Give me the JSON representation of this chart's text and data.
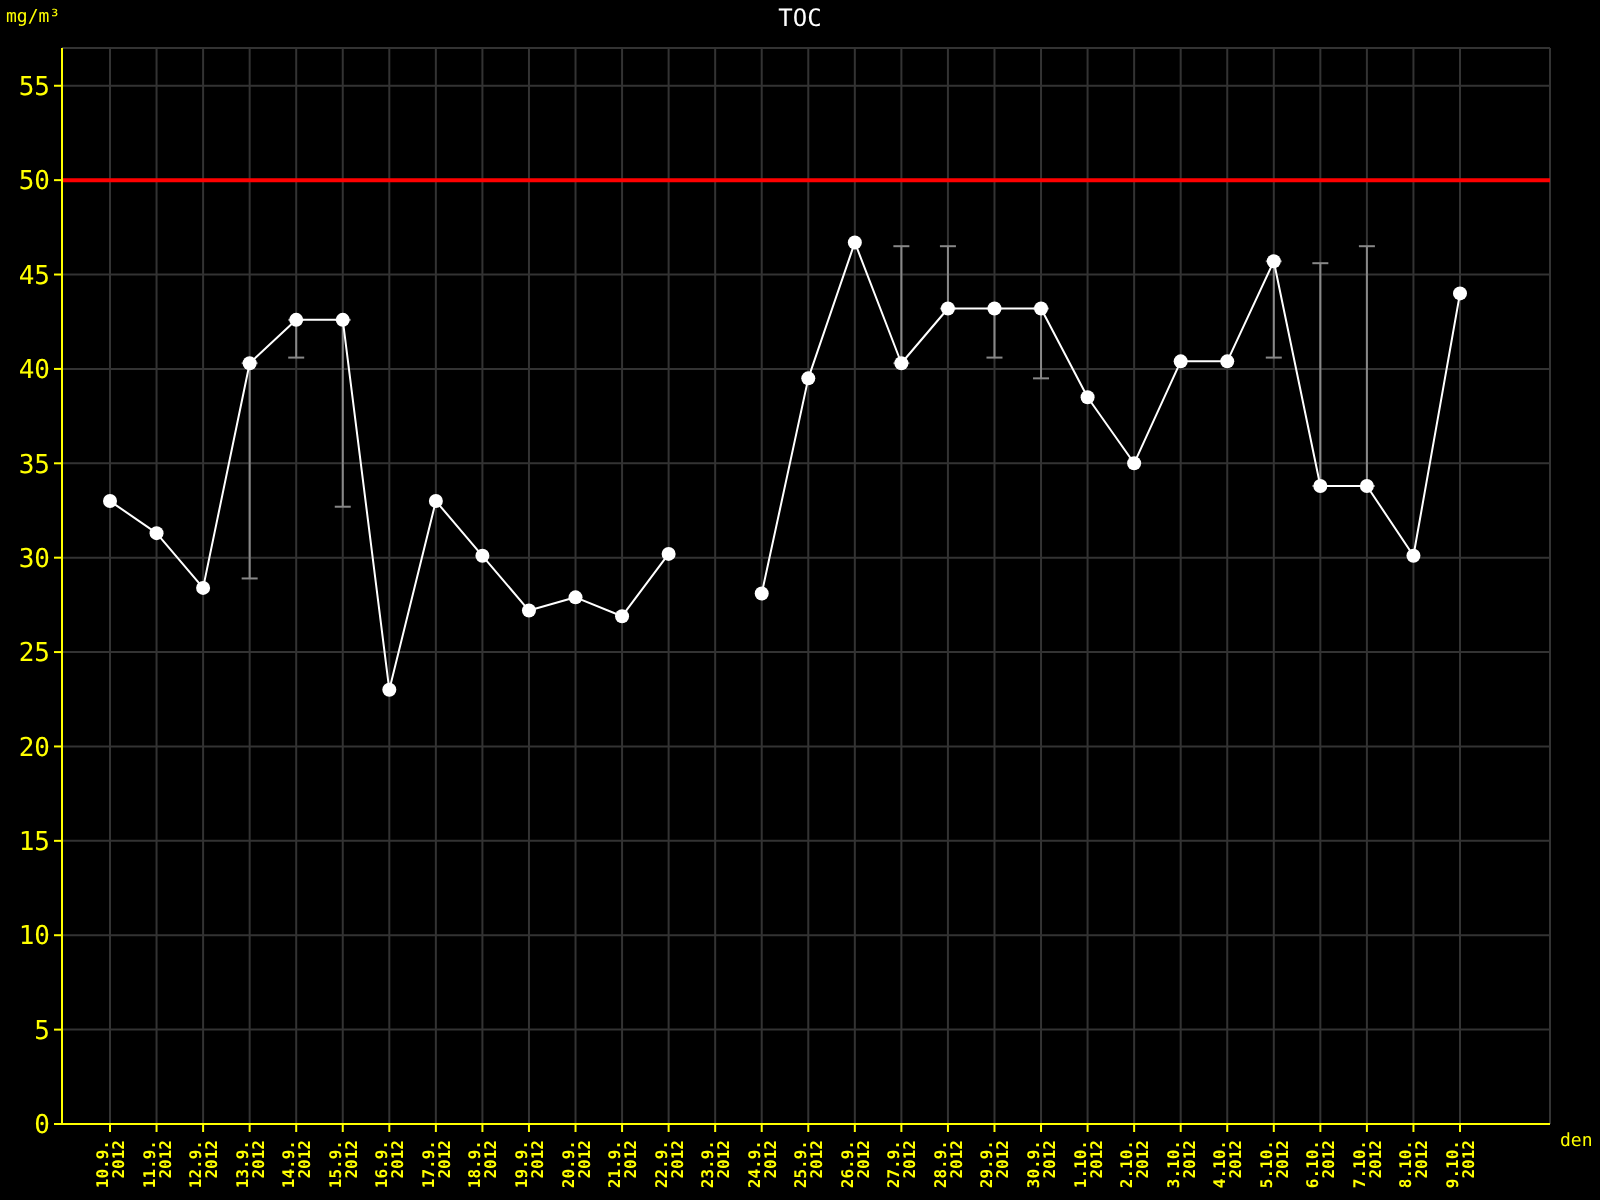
{
  "chart_data": {
    "type": "line",
    "title": "TOC",
    "xlabel": "den",
    "ylabel": "mg/m³",
    "categories": [
      "10.9. 2012",
      "11.9. 2012",
      "12.9. 2012",
      "13.9. 2012",
      "14.9. 2012",
      "15.9. 2012",
      "16.9. 2012",
      "17.9. 2012",
      "18.9. 2012",
      "19.9. 2012",
      "20.9. 2012",
      "21.9. 2012",
      "22.9. 2012",
      "23.9. 2012",
      "24.9. 2012",
      "25.9. 2012",
      "26.9. 2012",
      "27.9. 2012",
      "28.9. 2012",
      "29.9. 2012",
      "30.9. 2012",
      "1.10. 2012",
      "2.10. 2012",
      "3.10. 2012",
      "4.10. 2012",
      "5.10. 2012",
      "6.10. 2012",
      "7.10. 2012",
      "8.10. 2012",
      "9.10. 2012"
    ],
    "series": [
      {
        "color": "#ffffff",
        "values": [
          33.0,
          31.3,
          28.4,
          40.3,
          42.6,
          42.6,
          23.0,
          33.0,
          30.1,
          27.2,
          27.9,
          26.9,
          30.2,
          null,
          28.1,
          39.5,
          46.7,
          40.3,
          43.2,
          43.2,
          43.2,
          38.5,
          35.0,
          40.4,
          40.4,
          45.7,
          33.8,
          33.8,
          30.1,
          44.0
        ],
        "errors": [
          null,
          null,
          null,
          [
            28.9,
            40.3
          ],
          [
            40.6,
            42.6
          ],
          [
            32.7,
            42.6
          ],
          null,
          null,
          null,
          null,
          null,
          null,
          null,
          null,
          null,
          null,
          null,
          [
            40.3,
            46.5
          ],
          [
            43.2,
            46.5
          ],
          [
            40.6,
            43.2
          ],
          [
            39.5,
            43.2
          ],
          null,
          null,
          null,
          null,
          [
            40.6,
            45.7
          ],
          [
            33.8,
            45.6
          ],
          [
            33.8,
            46.5
          ],
          null,
          null
        ]
      }
    ],
    "ylim": [
      0,
      57
    ],
    "yticks": [
      0,
      5,
      10,
      15,
      20,
      25,
      30,
      35,
      40,
      45,
      50,
      55
    ],
    "grid": true,
    "marker": "circle",
    "line_style": "solid",
    "ref_lines": [
      {
        "axis": "y",
        "value": 50,
        "color": "#ff0000"
      }
    ]
  }
}
